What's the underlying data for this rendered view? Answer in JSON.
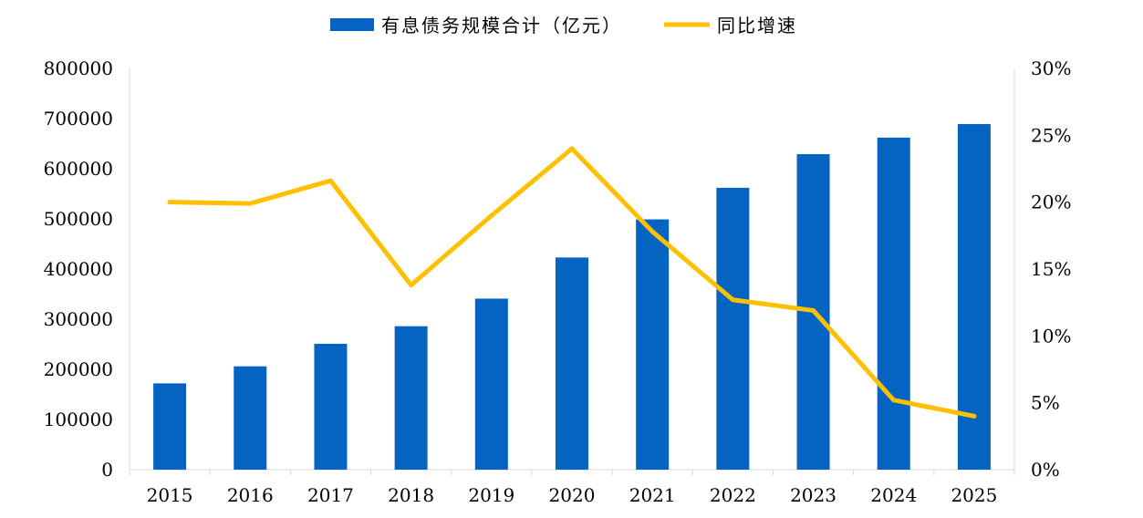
{
  "chart_data": {
    "type": "bar",
    "categories": [
      "2015",
      "2016",
      "2017",
      "2018",
      "2019",
      "2020",
      "2021",
      "2022",
      "2023",
      "2024",
      "2025"
    ],
    "series": [
      {
        "name": "有息债务规模合计（亿元）",
        "type": "bar",
        "axis": "left",
        "color": "#0563C1",
        "values": [
          172000,
          206000,
          251000,
          286000,
          341000,
          423000,
          499000,
          562000,
          629000,
          662000,
          689000
        ]
      },
      {
        "name": "同比增速",
        "type": "line",
        "axis": "right",
        "color": "#FFC000",
        "values": [
          0.2,
          0.199,
          0.216,
          0.138,
          0.19,
          0.24,
          0.178,
          0.127,
          0.119,
          0.052,
          0.04
        ]
      }
    ],
    "y_left": {
      "ylim": [
        0,
        800000
      ],
      "ticks": [
        0,
        100000,
        200000,
        300000,
        400000,
        500000,
        600000,
        700000,
        800000
      ],
      "tick_labels": [
        "0",
        "100000",
        "200000",
        "300000",
        "400000",
        "500000",
        "600000",
        "700000",
        "800000"
      ]
    },
    "y_right": {
      "ylim": [
        0,
        0.3
      ],
      "ticks": [
        0,
        0.05,
        0.1,
        0.15,
        0.2,
        0.25,
        0.3
      ],
      "tick_labels": [
        "0%",
        "5%",
        "10%",
        "15%",
        "20%",
        "25%",
        "30%"
      ]
    },
    "grid": false,
    "legend_position": "top-center"
  }
}
